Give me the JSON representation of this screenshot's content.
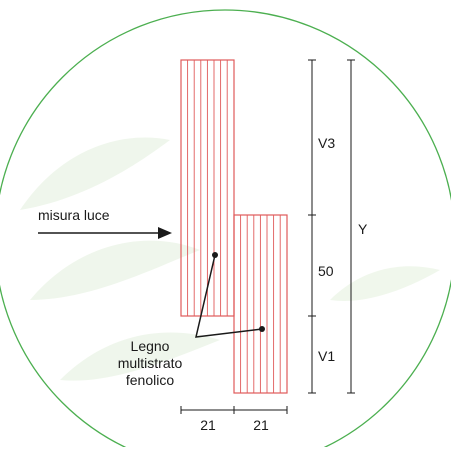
{
  "colors": {
    "circle": "#4caf50",
    "panel": "#e05a5a",
    "ink": "#1a1a1a",
    "watermark": "#eef6ea"
  },
  "labels": {
    "opening": "misura luce",
    "material_line1": "Legno",
    "material_line2": "multistrato",
    "material_line3": "fenolico",
    "dim_v3": "V3",
    "dim_50": "50",
    "dim_v1": "V1",
    "dim_y": "Y",
    "dim_width_left": "21",
    "dim_width_right": "21"
  }
}
